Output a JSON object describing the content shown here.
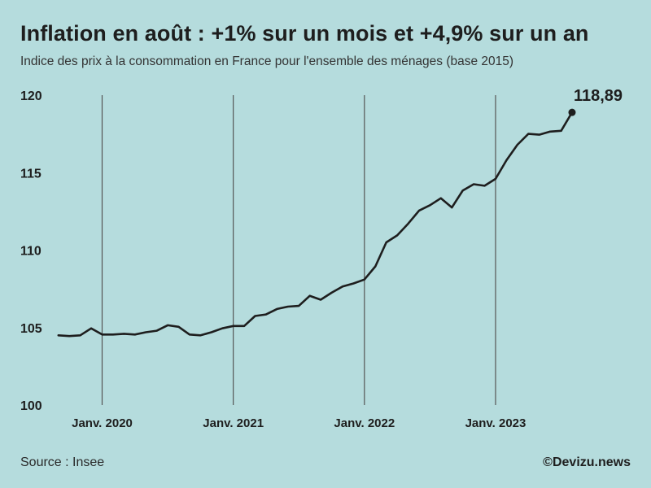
{
  "header": {
    "title": "Inflation en août : +1% sur un mois et +4,9% sur un an",
    "subtitle": "Indice des prix à la consommation en France pour l'ensemble des ménages (base 2015)"
  },
  "footer": {
    "source": "Source : Insee",
    "credit": "©Devizu.news"
  },
  "colors": {
    "background": "#b5dcdd",
    "line": "#1e1e1e",
    "gridline": "#555555"
  },
  "chart_data": {
    "type": "line",
    "title": "Inflation en août : +1% sur un mois et +4,9% sur un an",
    "subtitle": "Indice des prix à la consommation en France pour l'ensemble des ménages (base 2015)",
    "xlabel": "",
    "ylabel": "",
    "ylim": [
      100,
      120
    ],
    "yticks": [
      100,
      105,
      110,
      115,
      120
    ],
    "ytick_labels": [
      "100",
      "105",
      "110",
      "115",
      "120"
    ],
    "xlim": [
      "2019-09",
      "2023-08"
    ],
    "xtick_positions": [
      "2020-01",
      "2021-01",
      "2022-01",
      "2023-01"
    ],
    "xtick_labels": [
      "Janv. 2020",
      "Janv. 2021",
      "Janv. 2022",
      "Janv. 2023"
    ],
    "grid": "vertical lines at January of each year",
    "legend": "none",
    "end_label": "118,89",
    "series": [
      {
        "x": [
          "2019-09",
          "2019-10",
          "2019-11",
          "2019-12",
          "2020-01",
          "2020-02",
          "2020-03",
          "2020-04",
          "2020-05",
          "2020-06",
          "2020-07",
          "2020-08",
          "2020-09",
          "2020-10",
          "2020-11",
          "2020-12",
          "2021-01",
          "2021-02",
          "2021-03",
          "2021-04",
          "2021-05",
          "2021-06",
          "2021-07",
          "2021-08",
          "2021-09",
          "2021-10",
          "2021-11",
          "2021-12",
          "2022-01",
          "2022-02",
          "2022-03",
          "2022-04",
          "2022-05",
          "2022-06",
          "2022-07",
          "2022-08",
          "2022-09",
          "2022-10",
          "2022-11",
          "2022-12",
          "2023-01",
          "2023-02",
          "2023-03",
          "2023-04",
          "2023-05",
          "2023-06",
          "2023-07",
          "2023-08"
        ],
        "values": [
          104.5,
          104.45,
          104.5,
          104.95,
          104.55,
          104.55,
          104.6,
          104.55,
          104.7,
          104.8,
          105.15,
          105.05,
          104.55,
          104.5,
          104.7,
          104.95,
          105.1,
          105.1,
          105.75,
          105.85,
          106.2,
          106.35,
          106.4,
          107.05,
          106.8,
          107.25,
          107.65,
          107.85,
          108.1,
          108.95,
          110.5,
          110.95,
          111.7,
          112.55,
          112.9,
          113.35,
          112.75,
          113.85,
          114.25,
          114.15,
          114.6,
          115.8,
          116.8,
          117.5,
          117.45,
          117.65,
          117.7,
          118.89
        ]
      }
    ]
  }
}
